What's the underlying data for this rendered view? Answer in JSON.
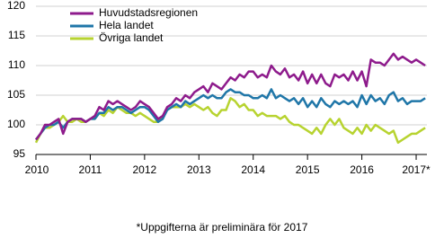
{
  "chart_data": {
    "type": "line",
    "footnote": "*Uppgifterna är preliminära för 2017",
    "categories": [
      "2010",
      null,
      null,
      null,
      null,
      null,
      null,
      null,
      null,
      null,
      null,
      null,
      "2011",
      null,
      null,
      null,
      null,
      null,
      null,
      null,
      null,
      null,
      null,
      null,
      "2012",
      null,
      null,
      null,
      null,
      null,
      null,
      null,
      null,
      null,
      null,
      null,
      "2013",
      null,
      null,
      null,
      null,
      null,
      null,
      null,
      null,
      null,
      null,
      null,
      "2014",
      null,
      null,
      null,
      null,
      null,
      null,
      null,
      null,
      null,
      null,
      null,
      "2015",
      null,
      null,
      null,
      null,
      null,
      null,
      null,
      null,
      null,
      null,
      null,
      "2016",
      null,
      null,
      null,
      null,
      null,
      null,
      null,
      null,
      null,
      null,
      null,
      "2017*",
      null,
      null
    ],
    "series": [
      {
        "name": "Huvudstadsregionen",
        "color": "#8e1b8c",
        "values": [
          97.5,
          98.5,
          100,
          100,
          100.5,
          101,
          98.5,
          100.5,
          101,
          101,
          101,
          100.5,
          101,
          101.5,
          103,
          102.5,
          104,
          103.5,
          104,
          103.5,
          103,
          102.5,
          103,
          104,
          103.5,
          103,
          102,
          101,
          101.5,
          103,
          103.5,
          104.5,
          104,
          105,
          104.5,
          105.5,
          106,
          106.5,
          105.5,
          107,
          106.5,
          106,
          107,
          108,
          107.5,
          108.5,
          108,
          109,
          109,
          108,
          108.5,
          108,
          110,
          109,
          108.5,
          109.5,
          108,
          108.5,
          107.5,
          109,
          107,
          108.5,
          107,
          108.5,
          107,
          106.5,
          108.5,
          108,
          108.5,
          107.5,
          109,
          107.5,
          109,
          106.5,
          111,
          110.5,
          110.5,
          110,
          111,
          112,
          111,
          111.5,
          111,
          110.5,
          111,
          110.5,
          110
        ]
      },
      {
        "name": "Hela landet",
        "color": "#1f76a8",
        "values": [
          97.5,
          98.5,
          99.5,
          100,
          100,
          100.5,
          99.5,
          100.5,
          101,
          101,
          101,
          100.5,
          101,
          101,
          102,
          102,
          103,
          102.5,
          103,
          103,
          102.5,
          102,
          102.5,
          103,
          103,
          102.5,
          101.5,
          100.5,
          101,
          102.5,
          103,
          103.5,
          103,
          104,
          103.5,
          104,
          104.5,
          105,
          104.5,
          105,
          104.5,
          104.5,
          105.5,
          106,
          105.5,
          105.5,
          105,
          105,
          104.5,
          104.5,
          105,
          104.5,
          106,
          104.5,
          105,
          104.5,
          104,
          104.5,
          103.5,
          104.5,
          103,
          104,
          103,
          104.5,
          103.5,
          103,
          104,
          103.5,
          104,
          103.5,
          104,
          103,
          105,
          103.5,
          105,
          104,
          104.5,
          103.5,
          105,
          105.5,
          104,
          104.5,
          103.5,
          104,
          104,
          104,
          104.5
        ]
      },
      {
        "name": "Övriga landet",
        "color": "#b7d330",
        "values": [
          97,
          98.5,
          99.5,
          99.5,
          100,
          100.5,
          101.5,
          100.5,
          100.5,
          101,
          100.5,
          100.5,
          101,
          101,
          102,
          101.5,
          102.5,
          102,
          103,
          102.5,
          102,
          102,
          101.5,
          102,
          101.5,
          101,
          100.5,
          100.5,
          101.5,
          102.5,
          103,
          103,
          103,
          103.5,
          103,
          103.5,
          103,
          102.5,
          103,
          102,
          101.5,
          102.5,
          102.5,
          104.5,
          104,
          103,
          103.5,
          102.5,
          102.5,
          101.5,
          102,
          101.5,
          101.5,
          101.5,
          101,
          101.5,
          100.5,
          100,
          100,
          99.5,
          99,
          98.5,
          99.5,
          98.5,
          100,
          101,
          100,
          101,
          99.5,
          99,
          98.5,
          99.5,
          98.5,
          100,
          99,
          100,
          99.5,
          99,
          98.5,
          99,
          97,
          97.5,
          98,
          98.5,
          98.5,
          99,
          99.5
        ]
      }
    ],
    "ylim": [
      95,
      120
    ],
    "yticks": [
      95,
      100,
      105,
      110,
      115,
      120
    ],
    "grid": true
  }
}
